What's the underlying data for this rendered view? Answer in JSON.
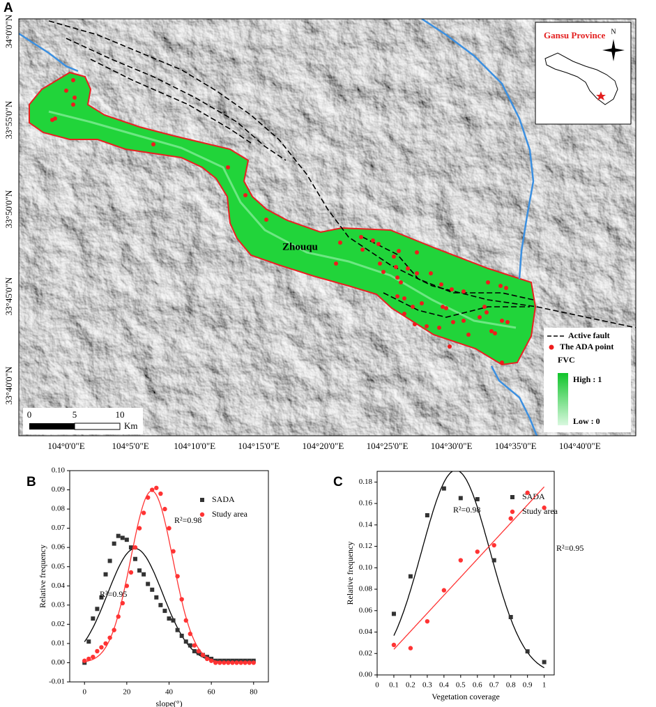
{
  "map": {
    "label": "A",
    "lat_labels": [
      "34°0'0\"N",
      "33°55'0\"N",
      "33°50'0\"N",
      "33°45'0\"N",
      "33°40'0\"N"
    ],
    "lon_labels": [
      "104°0'0\"E",
      "104°5'0\"E",
      "104°10'0\"E",
      "104°15'0\"E",
      "104°20'0\"E",
      "104°25'0\"E",
      "104°30'0\"E",
      "104°35'0\"E",
      "104°40'0\"E"
    ],
    "inset_title": "Gansu Province",
    "north": "N",
    "scale_labels": [
      "0",
      "5",
      "10"
    ],
    "scale_unit": "Km",
    "place_label": "Zhouqu",
    "legend": {
      "fault": "Active fault",
      "point": "The ADA point",
      "fvc_title": "FVC",
      "high": "High : 1",
      "low": "Low : 0"
    }
  },
  "chart_data": [
    {
      "type": "scatter",
      "label": "B",
      "x_label": "slope(°)",
      "y_label": "Relative frequency",
      "x": [
        0,
        2,
        4,
        6,
        8,
        10,
        12,
        14,
        16,
        18,
        20,
        22,
        24,
        26,
        28,
        30,
        32,
        34,
        36,
        38,
        40,
        42,
        44,
        46,
        48,
        50,
        52,
        54,
        56,
        58,
        60,
        62,
        64,
        66,
        68,
        70,
        72,
        74,
        76,
        78,
        80
      ],
      "series": [
        {
          "name": "SADA",
          "color": "#333333",
          "marker": "square",
          "fit": "gaussian",
          "values": [
            0.0,
            0.011,
            0.023,
            0.028,
            0.034,
            0.046,
            0.053,
            0.062,
            0.066,
            0.065,
            0.064,
            0.06,
            0.054,
            0.048,
            0.046,
            0.041,
            0.038,
            0.034,
            0.03,
            0.027,
            0.023,
            0.022,
            0.017,
            0.014,
            0.011,
            0.009,
            0.006,
            0.005,
            0.004,
            0.003,
            0.002,
            0.001,
            0.001,
            0.001,
            0.001,
            0.001,
            0.001,
            0.001,
            0.001,
            0.001,
            0.001
          ]
        },
        {
          "name": "Study area",
          "color": "#ff3333",
          "marker": "circle",
          "fit": "gaussian",
          "values": [
            0.001,
            0.002,
            0.003,
            0.006,
            0.008,
            0.01,
            0.013,
            0.017,
            0.024,
            0.031,
            0.04,
            0.047,
            0.06,
            0.07,
            0.078,
            0.086,
            0.09,
            0.091,
            0.088,
            0.08,
            0.07,
            0.058,
            0.045,
            0.033,
            0.022,
            0.015,
            0.009,
            0.006,
            0.004,
            0.002,
            0.001,
            0,
            0,
            0,
            0,
            0,
            0,
            0,
            0,
            0,
            0
          ]
        }
      ],
      "annotations": [
        "R²=0.95",
        "R²=0.98"
      ],
      "xlim": [
        -7,
        87
      ],
      "ylim": [
        -0.01,
        0.1
      ],
      "xticks": [
        0,
        20,
        40,
        60,
        80
      ],
      "yticks": [
        -0.01,
        {
          "value": 0,
          "label": "0.00"
        },
        0.01,
        0.02,
        0.03,
        0.04,
        0.05,
        0.06,
        0.07,
        0.08,
        0.09,
        {
          "value": 0.1,
          "label": "0.10"
        }
      ]
    },
    {
      "type": "scatter",
      "label": "C",
      "x_label": "Vegetation coverage",
      "y_label": "Relative frequency",
      "x": [
        0.1,
        0.2,
        0.3,
        0.4,
        0.5,
        0.6,
        0.7,
        0.8,
        0.9,
        1
      ],
      "series": [
        {
          "name": "SADA",
          "color": "#333333",
          "marker": "square",
          "fit": "gaussian",
          "values": [
            0.057,
            0.092,
            0.149,
            0.174,
            0.165,
            0.164,
            0.107,
            0.054,
            0.022,
            0.012
          ]
        },
        {
          "name": "Study area",
          "color": "#ff3333",
          "marker": "circle",
          "fit": "linear",
          "values": [
            0.028,
            0.025,
            0.05,
            0.079,
            0.107,
            0.115,
            0.121,
            0.146,
            0.17,
            0.156
          ]
        }
      ],
      "annotations": [
        "R²=0.98",
        "R²=0.95"
      ],
      "xlim": [
        0,
        1.06
      ],
      "ylim": [
        0,
        0.19
      ],
      "xticks": [
        0,
        0.1,
        0.2,
        0.3,
        0.4,
        0.5,
        0.6,
        0.7,
        0.8,
        0.9,
        1
      ],
      "yticks": [
        {
          "value": 0,
          "label": "0.00"
        },
        0.02,
        0.04,
        0.06,
        0.08,
        {
          "value": 0.1,
          "label": "0.10"
        },
        0.12,
        0.14,
        0.16,
        0.18
      ]
    }
  ]
}
